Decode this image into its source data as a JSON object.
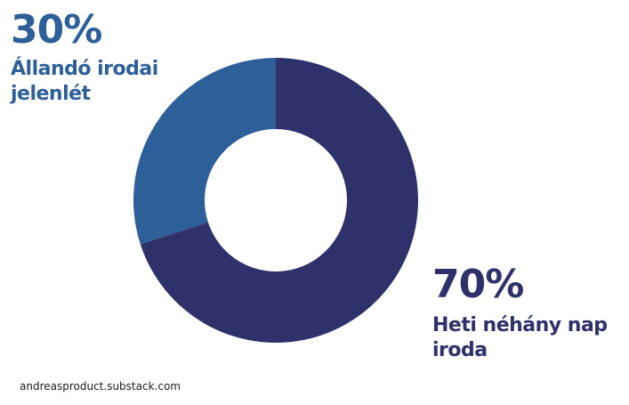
{
  "chart_data": {
    "type": "pie",
    "variant": "donut",
    "categories": [
      "Állandó irodai jelenlét",
      "Heti néhány nap iroda"
    ],
    "values": [
      30,
      70
    ],
    "unit": "%",
    "data_labels": [
      "30%",
      "70%"
    ],
    "label_lines": [
      [
        "Állandó irodai",
        "jelenlét"
      ],
      [
        "Heti néhány nap",
        "iroda"
      ]
    ],
    "colors": [
      "#2d5f99",
      "#2f326a"
    ],
    "legend": "none"
  },
  "footer": {
    "source": "andreasproduct.substack.com"
  }
}
